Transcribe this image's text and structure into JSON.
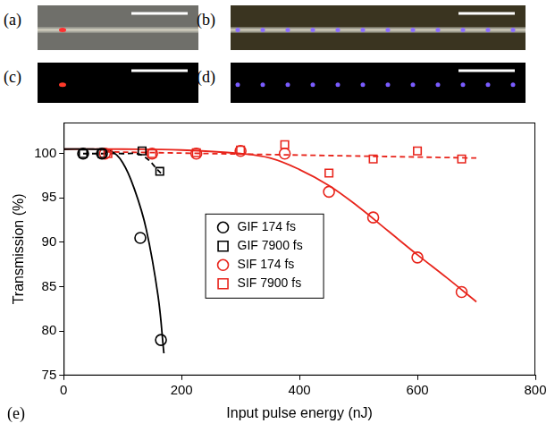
{
  "panels": [
    {
      "label": "(a)"
    },
    {
      "label": "(b)"
    },
    {
      "label": "(c)"
    },
    {
      "label": "(d)"
    }
  ],
  "chart_data": {
    "type": "scatter",
    "panel_label": "(e)",
    "x_label": "Input pulse energy (nJ)",
    "y_label": "Transmission (%)",
    "xlim": [
      0,
      800
    ],
    "xticks": [
      0,
      200,
      400,
      600,
      800
    ],
    "ylim": [
      75,
      103.5
    ],
    "yticks": [
      75,
      80,
      85,
      90,
      95,
      100
    ],
    "grid": false,
    "legend": "center",
    "series": [
      {
        "name": "GIF 174 fs",
        "color": "#000000",
        "marker": "circle",
        "line_style": "solid",
        "x": [
          33,
          65,
          130,
          165
        ],
        "values": [
          100,
          100,
          90.5,
          79
        ],
        "fit_x": [
          0,
          50,
          80,
          100,
          120,
          140,
          160,
          170
        ],
        "fit_values": [
          100.5,
          100.5,
          100.3,
          99,
          96,
          91.5,
          84,
          77.5
        ]
      },
      {
        "name": "GIF 7900 fs",
        "color": "#000000",
        "marker": "square",
        "line_style": "dashed",
        "x": [
          33,
          65,
          133,
          163
        ],
        "values": [
          100,
          100,
          100.3,
          98
        ],
        "fit_x": [
          33,
          65,
          100,
          133,
          165
        ],
        "fit_values": [
          100,
          100,
          100,
          99.8,
          97.8
        ]
      },
      {
        "name": "SIF 174 fs",
        "color": "#e8251c",
        "marker": "circle",
        "line_style": "solid",
        "x": [
          70,
          150,
          225,
          300,
          375,
          450,
          525,
          600,
          675
        ],
        "values": [
          100,
          100,
          100,
          100.3,
          100,
          95.7,
          92.8,
          88.3,
          84.4
        ],
        "fit_x": [
          0,
          100,
          200,
          300,
          350,
          400,
          450,
          500,
          550,
          600,
          650,
          700
        ],
        "fit_values": [
          100.5,
          100.5,
          100.4,
          100,
          99.5,
          98.2,
          96.4,
          94,
          91.3,
          88.6,
          86,
          83.3
        ]
      },
      {
        "name": "SIF 7900 fs",
        "color": "#e8251c",
        "marker": "square",
        "line_style": "dashed",
        "x": [
          75,
          150,
          225,
          300,
          375,
          450,
          525,
          600,
          675
        ],
        "values": [
          100,
          100,
          100.1,
          100.4,
          101,
          97.8,
          99.4,
          100.3,
          99.4
        ],
        "fit_x": [
          70,
          700
        ],
        "fit_values": [
          100.2,
          99.5
        ]
      }
    ]
  }
}
